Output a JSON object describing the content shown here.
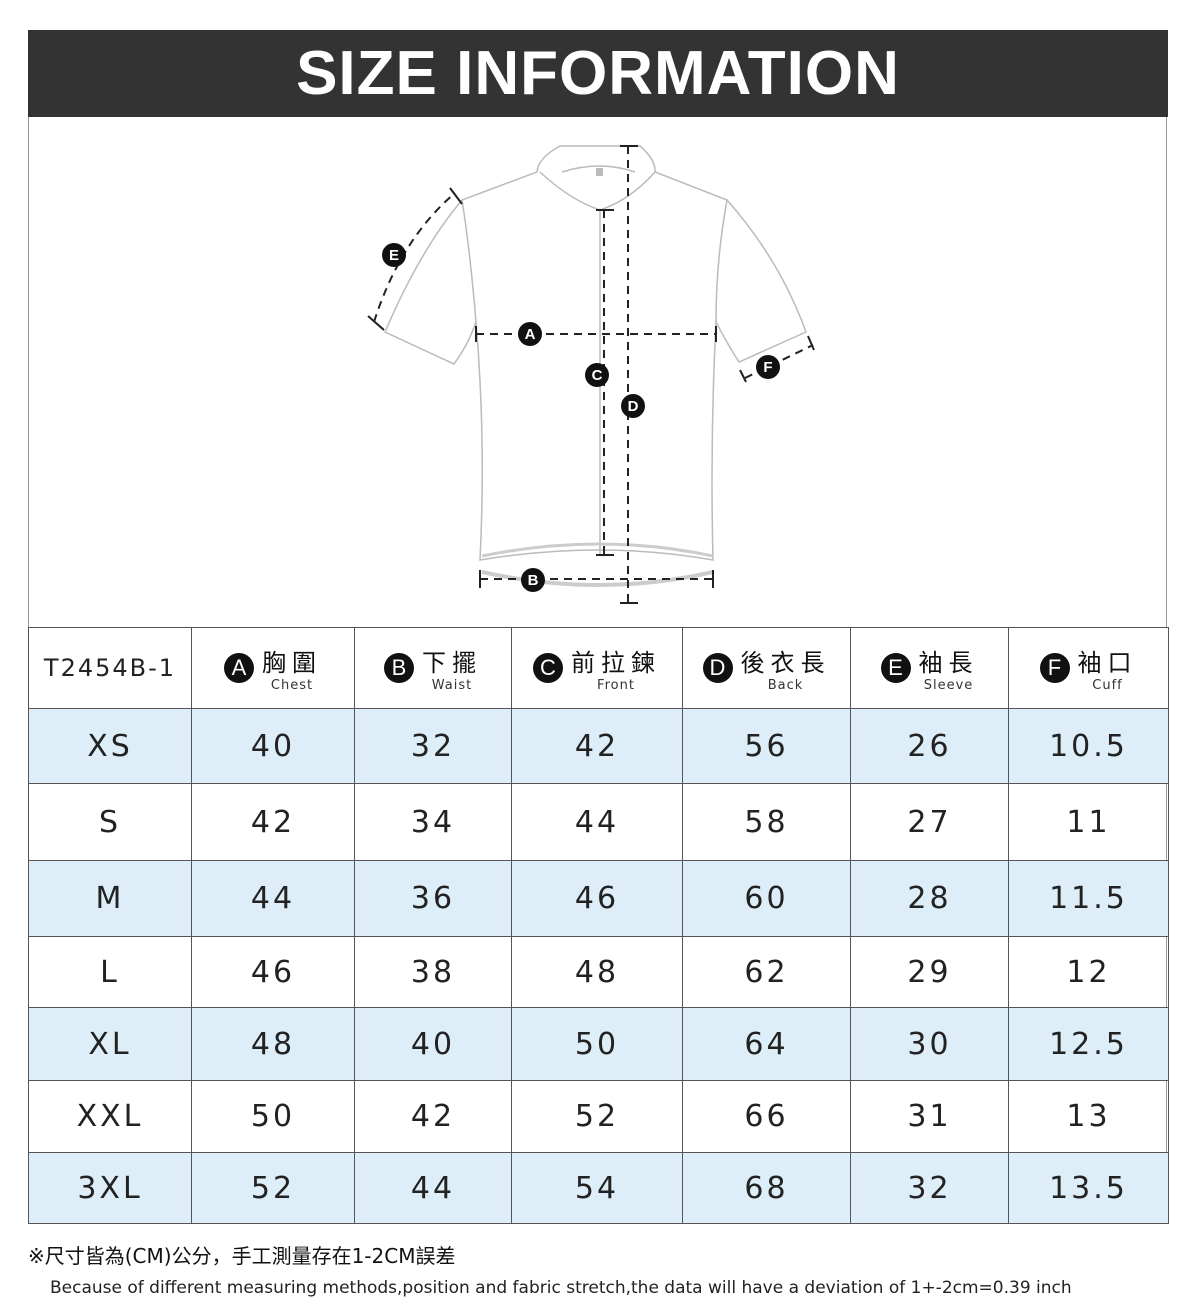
{
  "title": "SIZE INFORMATION",
  "diagram": {
    "markers": [
      "A",
      "B",
      "C",
      "D",
      "E",
      "F"
    ]
  },
  "table": {
    "model": "T2454B-1",
    "columns": [
      {
        "marker": "A",
        "zh": "胸圍",
        "en": "Chest"
      },
      {
        "marker": "B",
        "zh": "下擺",
        "en": "Waist"
      },
      {
        "marker": "C",
        "zh": "前拉鍊",
        "en": "Front"
      },
      {
        "marker": "D",
        "zh": "後衣長",
        "en": "Back"
      },
      {
        "marker": "E",
        "zh": "袖長",
        "en": "Sleeve"
      },
      {
        "marker": "F",
        "zh": "袖口",
        "en": "Cuff"
      }
    ],
    "rows": [
      {
        "size": "XS",
        "values": [
          "40",
          "32",
          "42",
          "56",
          "26",
          "10.5"
        ]
      },
      {
        "size": "S",
        "values": [
          "42",
          "34",
          "44",
          "58",
          "27",
          "11"
        ]
      },
      {
        "size": "M",
        "values": [
          "44",
          "36",
          "46",
          "60",
          "28",
          "11.5"
        ]
      },
      {
        "size": "L",
        "values": [
          "46",
          "38",
          "48",
          "62",
          "29",
          "12"
        ]
      },
      {
        "size": "XL",
        "values": [
          "48",
          "40",
          "50",
          "64",
          "30",
          "12.5"
        ]
      },
      {
        "size": "XXL",
        "values": [
          "50",
          "42",
          "52",
          "66",
          "31",
          "13"
        ]
      },
      {
        "size": "3XL",
        "values": [
          "52",
          "44",
          "54",
          "68",
          "32",
          "13.5"
        ]
      }
    ]
  },
  "notes": {
    "zh": "※尺寸皆為(CM)公分，手工測量存在1-2CM誤差",
    "en": "Because of different measuring methods,position and fabric stretch,the data will have a deviation of 1+-2cm=0.39 inch"
  },
  "colors": {
    "banner": "#333333",
    "row_alt": "#ddeef8"
  }
}
